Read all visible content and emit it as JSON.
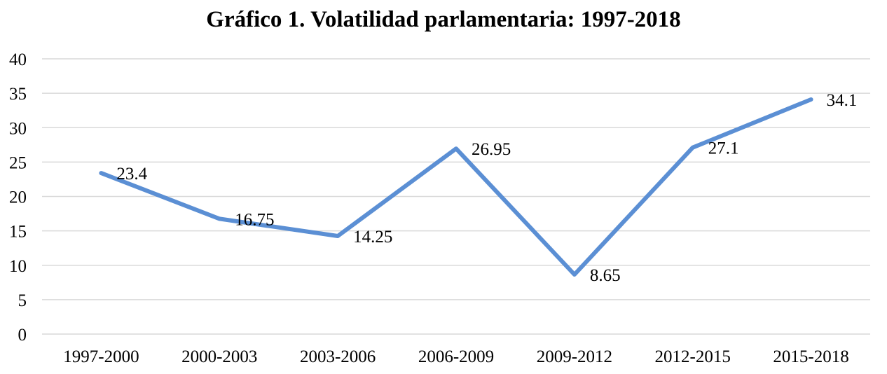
{
  "chart_data": {
    "type": "line",
    "title": "Gráfico 1. Volatilidad parlamentaria: 1997-2018",
    "xlabel": "",
    "ylabel": "",
    "categories": [
      "1997-2000",
      "2000-2003",
      "2003-2006",
      "2006-2009",
      "2009-2012",
      "2012-2015",
      "2015-2018"
    ],
    "series": [
      {
        "values": [
          23.4,
          16.75,
          14.25,
          26.95,
          8.65,
          27.1,
          34.1
        ],
        "color": "#5b8fd4",
        "data_labels": [
          "23.4",
          "16.75",
          "14.25",
          "26.95",
          "8.65",
          "27.1",
          "34.1"
        ]
      }
    ],
    "ylim": [
      0,
      40
    ],
    "yticks": [
      "0",
      "5",
      "10",
      "15",
      "20",
      "25",
      "30",
      "35",
      "40"
    ],
    "grid": true,
    "legend": "none",
    "gridline_color": "#d9d9d9"
  }
}
